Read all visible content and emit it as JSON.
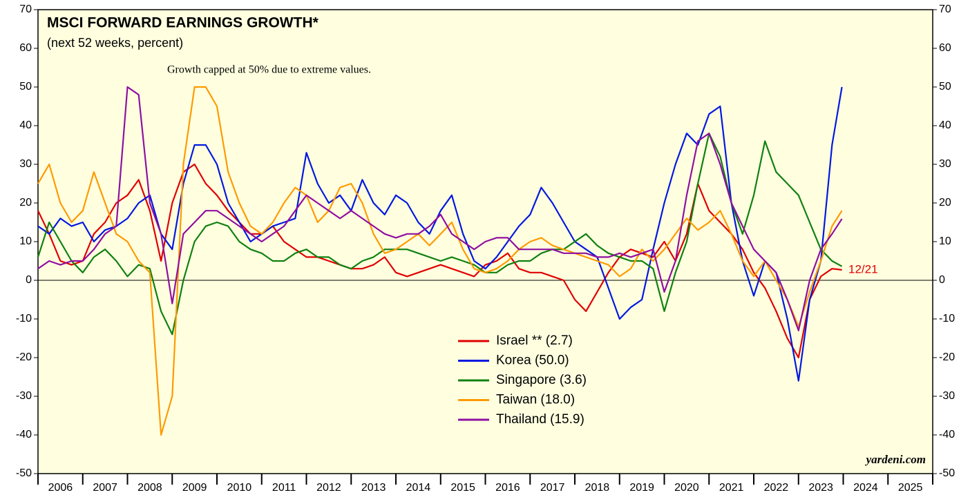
{
  "chart_data": {
    "type": "line",
    "title": "MSCI FORWARD EARNINGS GROWTH*",
    "subtitle": "(next 52 weeks, percent)",
    "annotations": [
      "Growth capped at 50% due to extreme values.",
      "12/21",
      "yardeni.com"
    ],
    "x": [
      2006,
      2006.25,
      2006.5,
      2006.75,
      2007,
      2007.25,
      2007.5,
      2007.75,
      2008,
      2008.25,
      2008.5,
      2008.75,
      2009,
      2009.25,
      2009.5,
      2009.75,
      2010,
      2010.25,
      2010.5,
      2010.75,
      2011,
      2011.25,
      2011.5,
      2011.75,
      2012,
      2012.25,
      2012.5,
      2012.75,
      2013,
      2013.25,
      2013.5,
      2013.75,
      2014,
      2014.25,
      2014.5,
      2014.75,
      2015,
      2015.25,
      2015.5,
      2015.75,
      2016,
      2016.25,
      2016.5,
      2016.75,
      2017,
      2017.25,
      2017.5,
      2017.75,
      2018,
      2018.25,
      2018.5,
      2018.75,
      2019,
      2019.25,
      2019.5,
      2019.75,
      2020,
      2020.25,
      2020.5,
      2020.75,
      2021,
      2021.25,
      2021.5,
      2021.75,
      2022,
      2022.25,
      2022.5,
      2022.75,
      2023,
      2023.25,
      2023.5,
      2023.75,
      2023.97
    ],
    "series": [
      {
        "name": "Israel ** (2.7)",
        "color": "#e00000",
        "values": [
          18,
          12,
          5,
          4,
          5,
          12,
          15,
          20,
          22,
          26,
          18,
          5,
          20,
          28,
          30,
          25,
          22,
          18,
          15,
          12,
          12,
          14,
          10,
          8,
          6,
          6,
          5,
          4,
          3,
          3,
          4,
          6,
          2,
          1,
          2,
          3,
          4,
          3,
          2,
          1,
          4,
          5,
          7,
          3,
          2,
          2,
          1,
          0,
          -5,
          -8,
          -3,
          2,
          6,
          8,
          7,
          6,
          10,
          5,
          12,
          25,
          18,
          15,
          12,
          8,
          2,
          -2,
          -8,
          -15,
          -20,
          -5,
          1,
          3,
          2.7
        ]
      },
      {
        "name": "Korea (50.0)",
        "color": "#0018e0",
        "values": [
          14,
          12,
          16,
          14,
          15,
          10,
          13,
          14,
          16,
          20,
          22,
          12,
          8,
          25,
          35,
          35,
          30,
          20,
          15,
          10,
          12,
          14,
          15,
          16,
          33,
          25,
          20,
          22,
          18,
          26,
          20,
          17,
          22,
          20,
          15,
          12,
          18,
          22,
          12,
          5,
          3,
          6,
          10,
          14,
          17,
          24,
          20,
          15,
          10,
          8,
          6,
          -2,
          -10,
          -7,
          -5,
          8,
          20,
          30,
          38,
          35,
          43,
          45,
          20,
          5,
          -4,
          5,
          2,
          -10,
          -26,
          -5,
          5,
          35,
          50
        ]
      },
      {
        "name": "Singapore (3.6)",
        "color": "#108010",
        "values": [
          6,
          15,
          10,
          5,
          2,
          6,
          8,
          5,
          1,
          4,
          3,
          -8,
          -14,
          0,
          10,
          14,
          15,
          14,
          10,
          8,
          7,
          5,
          5,
          7,
          8,
          6,
          6,
          4,
          3,
          5,
          6,
          8,
          8,
          8,
          7,
          6,
          5,
          6,
          5,
          4,
          2,
          2,
          4,
          5,
          5,
          7,
          8,
          8,
          10,
          12,
          9,
          7,
          6,
          5,
          5,
          3,
          -8,
          2,
          10,
          25,
          38,
          32,
          20,
          12,
          22,
          36,
          28,
          25,
          22,
          15,
          8,
          5,
          3.6
        ]
      },
      {
        "name": "Taiwan (18.0)",
        "color": "#ff9a00",
        "values": [
          25,
          30,
          20,
          15,
          18,
          28,
          20,
          12,
          10,
          5,
          2,
          -40,
          -30,
          30,
          50,
          50,
          45,
          28,
          20,
          14,
          12,
          15,
          20,
          24,
          22,
          15,
          18,
          24,
          25,
          20,
          12,
          7,
          8,
          10,
          12,
          9,
          12,
          15,
          8,
          3,
          2,
          3,
          5,
          8,
          10,
          11,
          9,
          8,
          7,
          6,
          5,
          4,
          1,
          3,
          8,
          5,
          8,
          12,
          16,
          13,
          15,
          18,
          12,
          5,
          1,
          5,
          0,
          -5,
          -12,
          -3,
          5,
          14,
          18.0
        ]
      },
      {
        "name": "Thailand (15.9)",
        "color": "#9010a0",
        "values": [
          3,
          5,
          4,
          5,
          5,
          8,
          12,
          14,
          50,
          48,
          20,
          12,
          -6,
          12,
          15,
          18,
          18,
          16,
          14,
          12,
          10,
          12,
          14,
          18,
          22,
          20,
          18,
          16,
          18,
          16,
          14,
          12,
          11,
          12,
          12,
          14,
          17,
          12,
          10,
          8,
          10,
          11,
          11,
          8,
          8,
          8,
          8,
          7,
          7,
          7,
          6,
          6,
          7,
          6,
          7,
          8,
          -3,
          5,
          22,
          36,
          38,
          30,
          20,
          14,
          8,
          5,
          2,
          -5,
          -13,
          0,
          8,
          12,
          15.9
        ]
      }
    ],
    "xlim": [
      2006,
      2026
    ],
    "xticks": [
      2006,
      2007,
      2008,
      2009,
      2010,
      2011,
      2012,
      2013,
      2014,
      2015,
      2016,
      2017,
      2018,
      2019,
      2020,
      2021,
      2022,
      2023,
      2024,
      2025
    ],
    "ylim": [
      -50,
      70
    ],
    "yticks": [
      -50,
      -40,
      -30,
      -20,
      -10,
      0,
      10,
      20,
      30,
      40,
      50,
      60,
      70
    ],
    "y2lim": [
      -50,
      70
    ],
    "y2ticks": [
      -50,
      -40,
      -30,
      -20,
      -10,
      0,
      10,
      20,
      30,
      40,
      50,
      60,
      70
    ],
    "background": "#ffffe0"
  }
}
